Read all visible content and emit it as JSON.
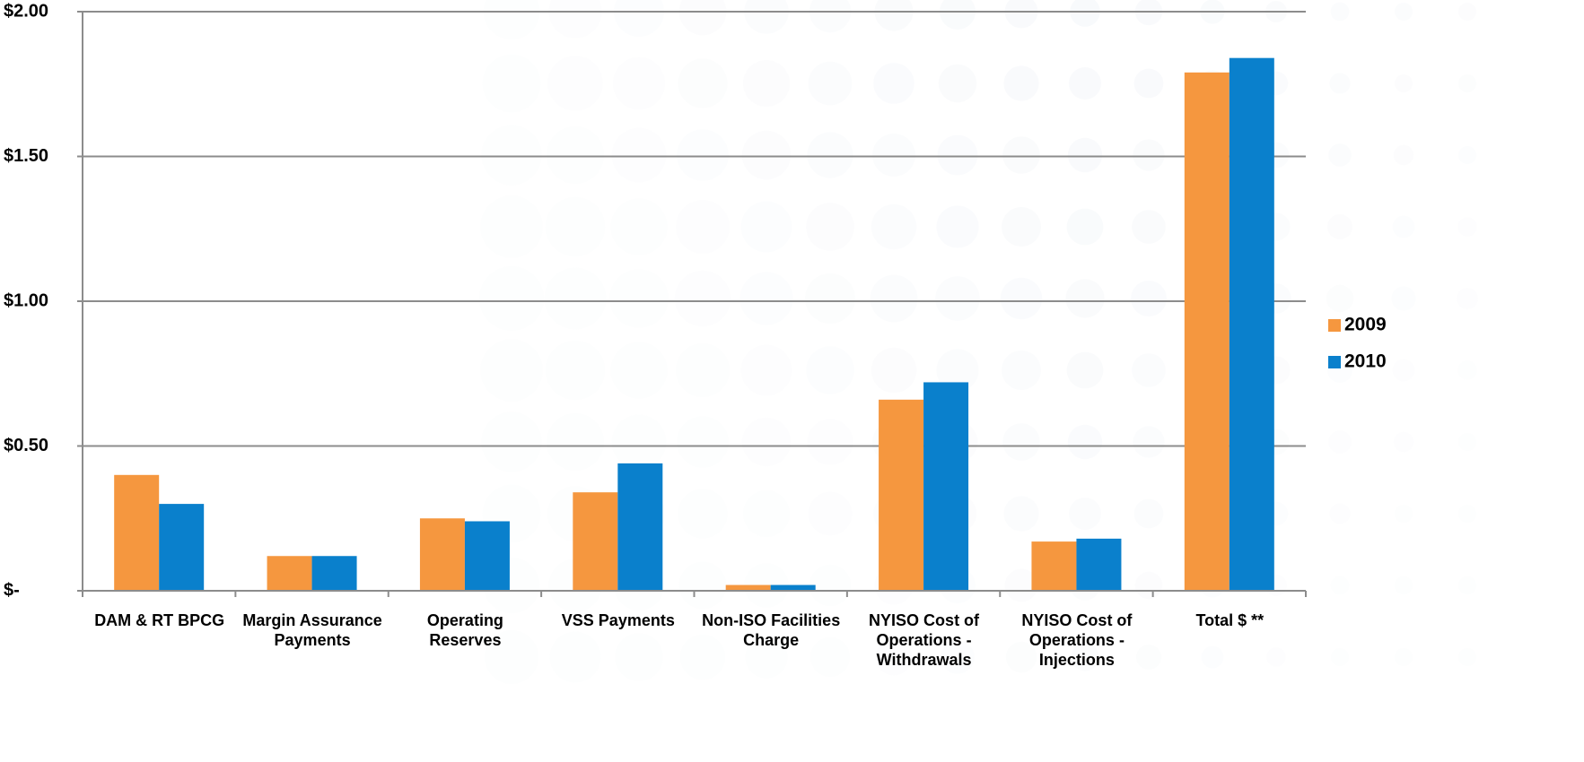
{
  "chart_data": {
    "type": "bar",
    "categories": [
      "DAM & RT BPCG",
      "Margin Assurance Payments",
      "Operating Reserves",
      "VSS Payments",
      "Non-ISO Facilities Charge",
      "NYISO Cost of Operations - Withdrawals",
      "NYISO Cost of Operations - Injections",
      "Total $ **"
    ],
    "series": [
      {
        "name": "2009",
        "color": "#f5973f",
        "values": [
          0.4,
          0.12,
          0.25,
          0.34,
          0.02,
          0.66,
          0.17,
          1.79
        ]
      },
      {
        "name": "2010",
        "color": "#0a80cc",
        "values": [
          0.3,
          0.12,
          0.24,
          0.44,
          0.02,
          0.72,
          0.18,
          1.84
        ]
      }
    ],
    "ylim": [
      0,
      2
    ],
    "yticks": [
      {
        "value": 0,
        "label": "$-"
      },
      {
        "value": 0.5,
        "label": "$0.50"
      },
      {
        "value": 1,
        "label": "$1.00"
      },
      {
        "value": 1.5,
        "label": "$1.50"
      },
      {
        "value": 2,
        "label": "$2.00"
      }
    ],
    "grid": true,
    "legend": "right"
  }
}
